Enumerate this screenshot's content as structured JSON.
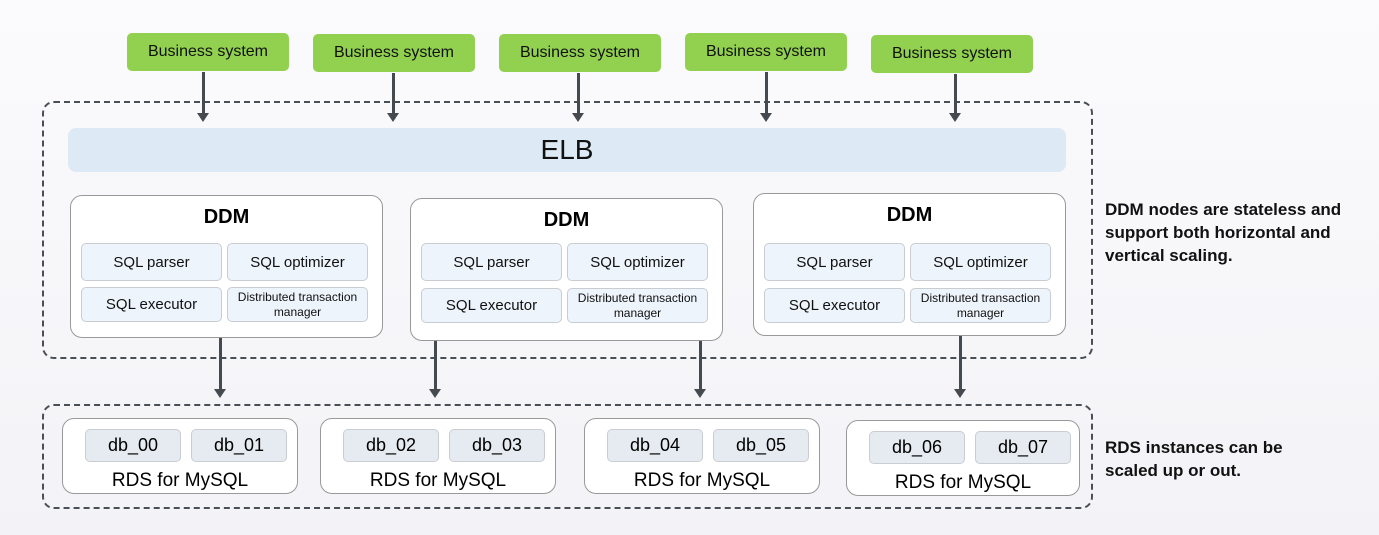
{
  "business_systems": [
    "Business system",
    "Business system",
    "Business system",
    "Business system",
    "Business system"
  ],
  "elb": "ELB",
  "ddm_nodes": [
    {
      "title": "DDM",
      "parser": "SQL parser",
      "optimizer": "SQL optimizer",
      "executor": "SQL executor",
      "dtm": "Distributed transaction manager"
    },
    {
      "title": "DDM",
      "parser": "SQL parser",
      "optimizer": "SQL optimizer",
      "executor": "SQL executor",
      "dtm": "Distributed transaction manager"
    },
    {
      "title": "DDM",
      "parser": "SQL parser",
      "optimizer": "SQL optimizer",
      "executor": "SQL executor",
      "dtm": "Distributed transaction manager"
    }
  ],
  "rds_instances": [
    {
      "dbs": [
        "db_00",
        "db_01"
      ],
      "label": "RDS for MySQL"
    },
    {
      "dbs": [
        "db_02",
        "db_03"
      ],
      "label": "RDS for MySQL"
    },
    {
      "dbs": [
        "db_04",
        "db_05"
      ],
      "label": "RDS for MySQL"
    },
    {
      "dbs": [
        "db_06",
        "db_07"
      ],
      "label": "RDS for MySQL"
    }
  ],
  "notes": {
    "ddm": "DDM nodes are stateless and support both horizontal and vertical scaling.",
    "rds": "RDS instances can be scaled up or out."
  },
  "colors": {
    "business": "#92d050",
    "elb": "#dde9f5",
    "cell": "#eef4fb"
  }
}
